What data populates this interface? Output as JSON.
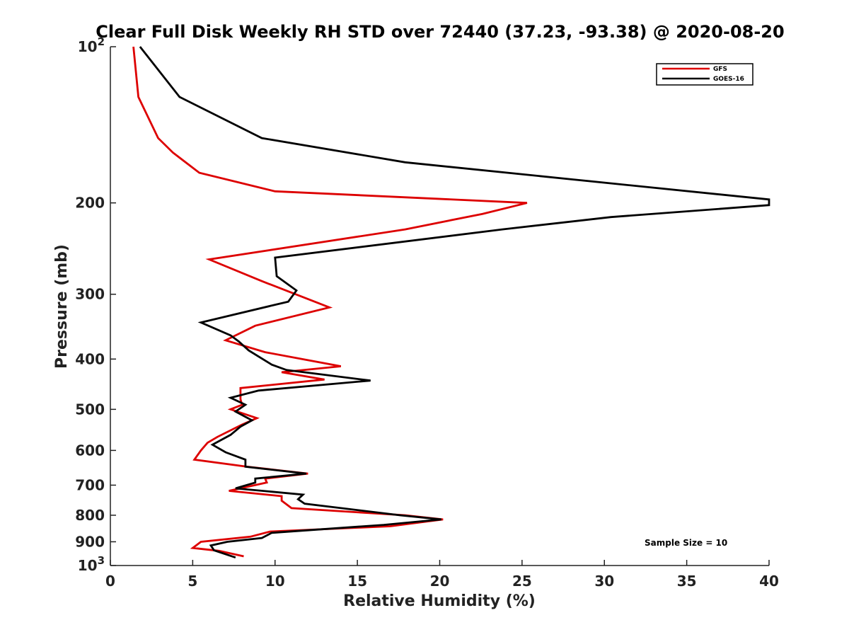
{
  "chart_data": {
    "type": "line",
    "title": "Clear Full Disk Weekly RH STD over 72440 (37.23, -93.38) @ 2020-08-20",
    "xlabel": "Relative Humidity (%)",
    "ylabel": "Pressure (mb)",
    "xlim": [
      0,
      40
    ],
    "ylim": [
      100,
      1000
    ],
    "y_scale": "log",
    "y_reversed": true,
    "grid": false,
    "x_ticks": [
      0,
      5,
      10,
      15,
      20,
      25,
      30,
      35,
      40
    ],
    "x_tick_labels": [
      "0",
      "5",
      "10",
      "15",
      "20",
      "25",
      "30",
      "35",
      "40"
    ],
    "y_ticks": [
      100,
      200,
      300,
      400,
      500,
      600,
      700,
      800,
      900,
      1000
    ],
    "y_tick_labels": [
      {
        "base": "10",
        "exp": "2"
      },
      {
        "base": "200"
      },
      {
        "base": "300"
      },
      {
        "base": "400"
      },
      {
        "base": "500"
      },
      {
        "base": "600"
      },
      {
        "base": "700"
      },
      {
        "base": "800"
      },
      {
        "base": "900"
      },
      {
        "base": "10",
        "exp": "3"
      }
    ],
    "legend_position": "top-right",
    "annotation": "Sample Size = 10",
    "series": [
      {
        "name": "GFS",
        "color": "#dd0000",
        "points": [
          [
            1.4,
            100
          ],
          [
            1.7,
            125
          ],
          [
            2.9,
            150
          ],
          [
            3.8,
            160
          ],
          [
            5.4,
            175
          ],
          [
            10.0,
            190
          ],
          [
            25.3,
            200
          ],
          [
            22.6,
            210
          ],
          [
            17.9,
            225
          ],
          [
            6.0,
            257
          ],
          [
            9.2,
            283
          ],
          [
            13.3,
            318
          ],
          [
            8.8,
            345
          ],
          [
            7.0,
            368
          ],
          [
            9.4,
            388
          ],
          [
            14.0,
            413
          ],
          [
            10.4,
            424
          ],
          [
            13.0,
            438
          ],
          [
            7.9,
            455
          ],
          [
            7.9,
            478
          ],
          [
            8.0,
            490
          ],
          [
            7.3,
            500
          ],
          [
            8.9,
            520
          ],
          [
            8.0,
            535
          ],
          [
            6.5,
            565
          ],
          [
            5.9,
            580
          ],
          [
            5.5,
            600
          ],
          [
            5.1,
            625
          ],
          [
            8.3,
            645
          ],
          [
            12.0,
            665
          ],
          [
            9.4,
            680
          ],
          [
            9.5,
            692
          ],
          [
            7.2,
            718
          ],
          [
            10.4,
            735
          ],
          [
            10.4,
            750
          ],
          [
            11.0,
            775
          ],
          [
            17.9,
            800
          ],
          [
            20.2,
            815
          ],
          [
            17.0,
            840
          ],
          [
            9.7,
            860
          ],
          [
            8.5,
            880
          ],
          [
            5.5,
            900
          ],
          [
            5.0,
            925
          ],
          [
            6.6,
            937
          ],
          [
            8.1,
            960
          ]
        ]
      },
      {
        "name": "GOES-16",
        "color": "#000000",
        "points": [
          [
            1.8,
            100
          ],
          [
            4.2,
            125
          ],
          [
            9.2,
            150
          ],
          [
            17.9,
            167
          ],
          [
            27.9,
            180
          ],
          [
            40.0,
            197
          ],
          [
            40.0,
            202
          ],
          [
            30.4,
            213
          ],
          [
            23.8,
            225
          ],
          [
            10.0,
            255
          ],
          [
            10.1,
            277
          ],
          [
            11.3,
            295
          ],
          [
            10.8,
            310
          ],
          [
            5.5,
            340
          ],
          [
            7.3,
            360
          ],
          [
            7.8,
            370
          ],
          [
            8.4,
            385
          ],
          [
            9.8,
            410
          ],
          [
            10.7,
            420
          ],
          [
            15.8,
            440
          ],
          [
            9.0,
            460
          ],
          [
            7.3,
            475
          ],
          [
            8.2,
            490
          ],
          [
            7.6,
            505
          ],
          [
            8.6,
            525
          ],
          [
            7.9,
            540
          ],
          [
            7.3,
            560
          ],
          [
            6.2,
            585
          ],
          [
            7.0,
            605
          ],
          [
            8.2,
            625
          ],
          [
            8.2,
            645
          ],
          [
            11.9,
            665
          ],
          [
            8.8,
            680
          ],
          [
            8.8,
            692
          ],
          [
            7.6,
            710
          ],
          [
            11.7,
            730
          ],
          [
            11.4,
            745
          ],
          [
            11.8,
            760
          ],
          [
            17.6,
            800
          ],
          [
            20.1,
            815
          ],
          [
            16.6,
            835
          ],
          [
            9.8,
            865
          ],
          [
            9.2,
            885
          ],
          [
            7.1,
            900
          ],
          [
            6.1,
            915
          ],
          [
            6.3,
            935
          ],
          [
            7.6,
            965
          ]
        ]
      }
    ]
  }
}
